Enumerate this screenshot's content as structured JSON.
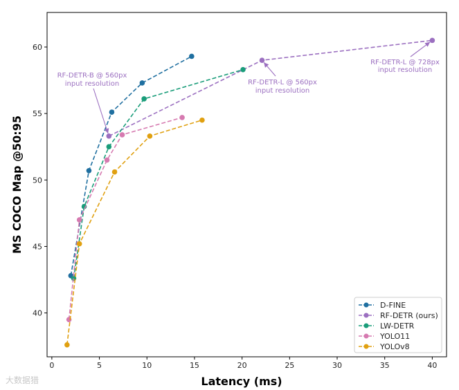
{
  "chart_data": {
    "type": "line",
    "xlabel": "Latency (ms)",
    "ylabel": "MS COCO  Map @50:95",
    "xlim": [
      -0.5,
      41.5
    ],
    "ylim": [
      36.7,
      62.6
    ],
    "xticks": [
      0,
      5,
      10,
      15,
      20,
      25,
      30,
      35,
      40
    ],
    "yticks": [
      40,
      45,
      50,
      55,
      60
    ],
    "grid": false,
    "legend_position": "lower-right",
    "series": [
      {
        "name": "D-FINE",
        "color": "#1f6fa0",
        "x": [
          2.0,
          3.9,
          6.3,
          9.5,
          14.7
        ],
        "y": [
          42.8,
          50.7,
          55.1,
          57.3,
          59.3
        ]
      },
      {
        "name": "RF-DETR (ours)",
        "color": "#9b6fc0",
        "x": [
          6.0,
          22.1,
          40.0
        ],
        "y": [
          53.3,
          59.0,
          60.5
        ]
      },
      {
        "name": "LW-DETR",
        "color": "#1a9d7a",
        "x": [
          2.3,
          3.4,
          6.0,
          9.7,
          20.1
        ],
        "y": [
          42.6,
          48.0,
          52.5,
          56.1,
          58.3
        ]
      },
      {
        "name": "YOLO11",
        "color": "#d67ab0",
        "x": [
          1.8,
          2.9,
          5.8,
          7.4,
          13.7
        ],
        "y": [
          39.5,
          47.0,
          51.5,
          53.4,
          54.7
        ]
      },
      {
        "name": "YOLOv8",
        "color": "#e0a010",
        "x": [
          1.6,
          2.9,
          6.6,
          10.3,
          15.8
        ],
        "y": [
          37.6,
          45.2,
          50.6,
          53.3,
          54.5
        ]
      }
    ],
    "annotations": [
      {
        "line1": "RF-DETR-B @ 560px",
        "line2": "input resolution",
        "x": 6.0,
        "y": 53.3,
        "color": "#9b6fc0"
      },
      {
        "line1": "RF-DETR-L @ 560px",
        "line2": "input resolution",
        "x": 22.1,
        "y": 59.0,
        "color": "#9b6fc0"
      },
      {
        "line1": "RF-DETR-L @ 728px",
        "line2": "input resolution",
        "x": 40.0,
        "y": 60.5,
        "color": "#9b6fc0"
      }
    ]
  },
  "watermark": "大数据猎"
}
